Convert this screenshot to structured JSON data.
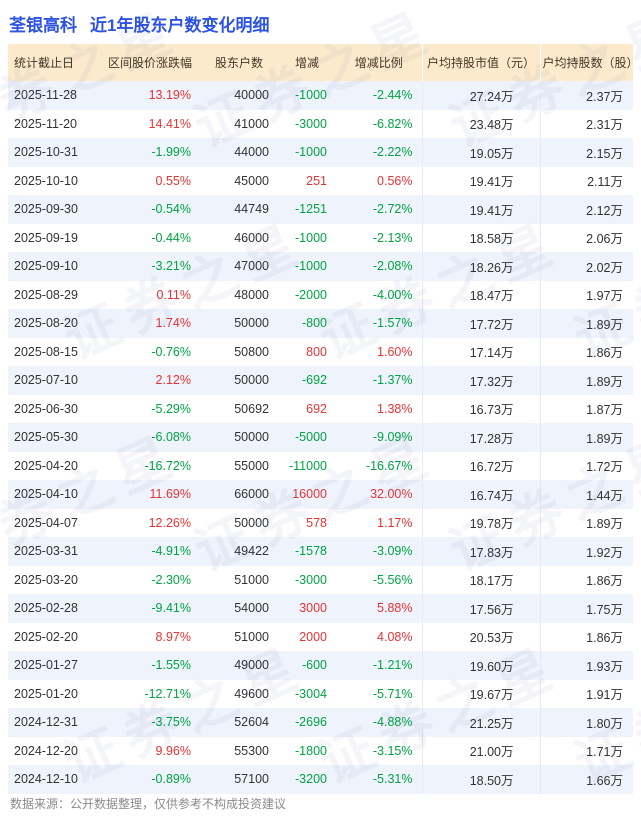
{
  "title": {
    "stock_name": "荃银高科",
    "subtitle": "近1年股东户数变化明细"
  },
  "watermark": {
    "text": "证券之星"
  },
  "chart_data": {
    "type": "table",
    "title": "荃银高科 近1年股东户数变化明细",
    "columns": [
      "统计截止日",
      "区间股价涨跌幅",
      "股东户数",
      "增减",
      "增减比例",
      "户均持股市值（元）",
      "户均持股数（股）"
    ],
    "rows": [
      [
        "2025-11-28",
        "13.19%",
        "40000",
        "-1000",
        "-2.44%",
        "27.24万",
        "2.37万"
      ],
      [
        "2025-11-20",
        "14.41%",
        "41000",
        "-3000",
        "-6.82%",
        "23.48万",
        "2.31万"
      ],
      [
        "2025-10-31",
        "-1.99%",
        "44000",
        "-1000",
        "-2.22%",
        "19.05万",
        "2.15万"
      ],
      [
        "2025-10-10",
        "0.55%",
        "45000",
        "251",
        "0.56%",
        "19.41万",
        "2.11万"
      ],
      [
        "2025-09-30",
        "-0.54%",
        "44749",
        "-1251",
        "-2.72%",
        "19.41万",
        "2.12万"
      ],
      [
        "2025-09-19",
        "-0.44%",
        "46000",
        "-1000",
        "-2.13%",
        "18.58万",
        "2.06万"
      ],
      [
        "2025-09-10",
        "-3.21%",
        "47000",
        "-1000",
        "-2.08%",
        "18.26万",
        "2.02万"
      ],
      [
        "2025-08-29",
        "0.11%",
        "48000",
        "-2000",
        "-4.00%",
        "18.47万",
        "1.97万"
      ],
      [
        "2025-08-20",
        "1.74%",
        "50000",
        "-800",
        "-1.57%",
        "17.72万",
        "1.89万"
      ],
      [
        "2025-08-15",
        "-0.76%",
        "50800",
        "800",
        "1.60%",
        "17.14万",
        "1.86万"
      ],
      [
        "2025-07-10",
        "2.12%",
        "50000",
        "-692",
        "-1.37%",
        "17.32万",
        "1.89万"
      ],
      [
        "2025-06-30",
        "-5.29%",
        "50692",
        "692",
        "1.38%",
        "16.73万",
        "1.87万"
      ],
      [
        "2025-05-30",
        "-6.08%",
        "50000",
        "-5000",
        "-9.09%",
        "17.28万",
        "1.89万"
      ],
      [
        "2025-04-20",
        "-16.72%",
        "55000",
        "-11000",
        "-16.67%",
        "16.72万",
        "1.72万"
      ],
      [
        "2025-04-10",
        "11.69%",
        "66000",
        "16000",
        "32.00%",
        "16.74万",
        "1.44万"
      ],
      [
        "2025-04-07",
        "12.26%",
        "50000",
        "578",
        "1.17%",
        "19.78万",
        "1.89万"
      ],
      [
        "2025-03-31",
        "-4.91%",
        "49422",
        "-1578",
        "-3.09%",
        "17.83万",
        "1.92万"
      ],
      [
        "2025-03-20",
        "-2.30%",
        "51000",
        "-3000",
        "-5.56%",
        "18.17万",
        "1.86万"
      ],
      [
        "2025-02-28",
        "-9.41%",
        "54000",
        "3000",
        "5.88%",
        "17.56万",
        "1.75万"
      ],
      [
        "2025-02-20",
        "8.97%",
        "51000",
        "2000",
        "4.08%",
        "20.53万",
        "1.86万"
      ],
      [
        "2025-01-27",
        "-1.55%",
        "49000",
        "-600",
        "-1.21%",
        "19.60万",
        "1.93万"
      ],
      [
        "2025-01-20",
        "-12.71%",
        "49600",
        "-3004",
        "-5.71%",
        "19.67万",
        "1.91万"
      ],
      [
        "2024-12-31",
        "-3.75%",
        "52604",
        "-2696",
        "-4.88%",
        "21.25万",
        "1.80万"
      ],
      [
        "2024-12-20",
        "9.96%",
        "55300",
        "-1800",
        "-3.15%",
        "21.00万",
        "1.71万"
      ],
      [
        "2024-12-10",
        "-0.89%",
        "57100",
        "-3200",
        "-5.31%",
        "18.50万",
        "1.66万"
      ]
    ]
  },
  "footer": {
    "note": "数据来源：公开数据整理，仅供参考不构成投资建议"
  },
  "colors": {
    "up_red": "#e63434",
    "down_green": "#00a443",
    "title_blue": "#2d53e3",
    "header_bg": "#fdeacd",
    "row_alt_bg": "#eff3fb"
  }
}
